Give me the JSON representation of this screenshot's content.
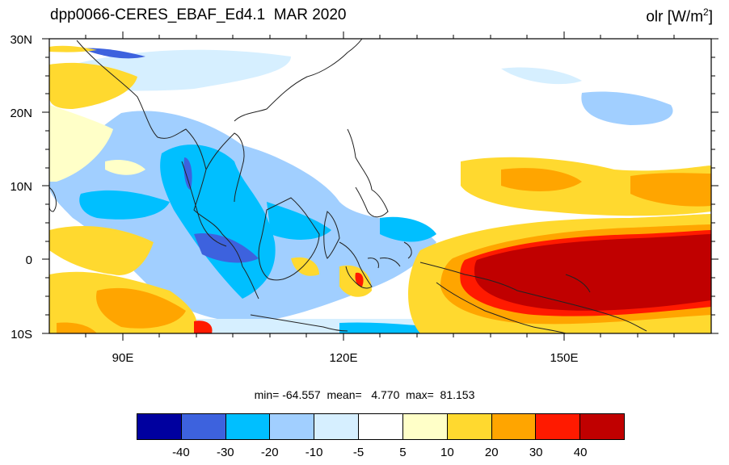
{
  "header": {
    "title_left": "dpp0066-CERES_EBAF_Ed4.1  MAR 2020",
    "title_right_main": "olr [W/m",
    "title_right_sup": "2",
    "title_right_end": "]"
  },
  "map": {
    "lon_range": [
      80,
      170
    ],
    "lat_range": [
      -10,
      30
    ],
    "lat_tick_labels": [
      "30N",
      "20N",
      "10N",
      "0",
      "10S"
    ],
    "lon_tick_labels": [
      "90E",
      "120E",
      "150E"
    ]
  },
  "stats_text": "min= -64.557  mean=   4.770  max=  81.153",
  "colorbar": {
    "colors": [
      "#00009f",
      "#3d62de",
      "#00bfff",
      "#a1cfff",
      "#d6efff",
      "#ffffff",
      "#ffffc8",
      "#ffd92f",
      "#ffa500",
      "#ff1a00",
      "#c00000"
    ],
    "labels": [
      "-40",
      "-30",
      "-20",
      "-10",
      "-5",
      "5",
      "10",
      "20",
      "30",
      "40"
    ]
  }
}
